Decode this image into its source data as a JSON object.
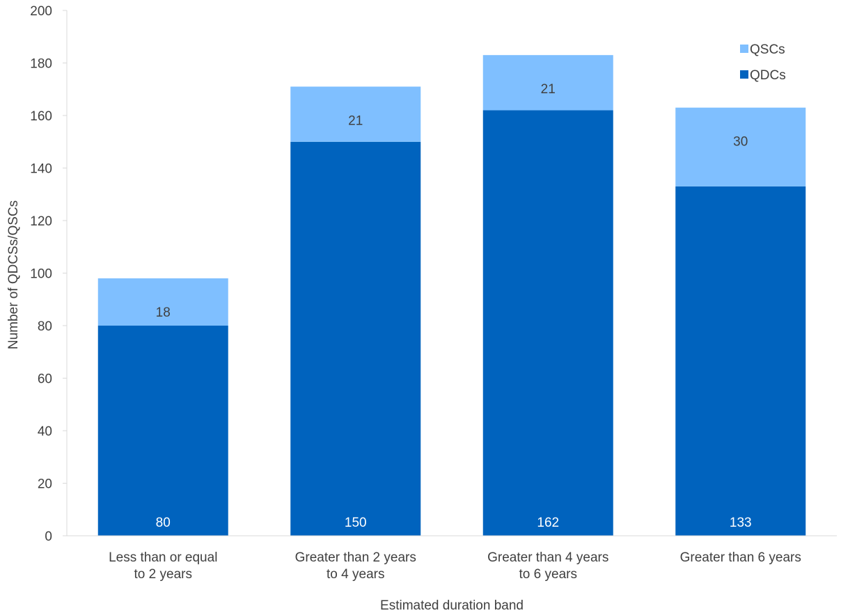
{
  "chart_data": {
    "type": "bar",
    "stacked": true,
    "title": "",
    "xlabel": "Estimated duration band",
    "ylabel": "Number of QDCSs/QSCs",
    "ylim": [
      0,
      200
    ],
    "yticks": [
      0,
      20,
      40,
      60,
      80,
      100,
      120,
      140,
      160,
      180,
      200
    ],
    "grid": false,
    "legend_position": "top-right",
    "categories": [
      [
        "Less than or equal",
        "to 2 years"
      ],
      [
        "Greater than 2 years",
        "to 4 years"
      ],
      [
        "Greater than 4 years",
        "to  6 years"
      ],
      [
        "Greater than 6 years"
      ]
    ],
    "series": [
      {
        "name": "QDCs",
        "values": [
          80,
          150,
          162,
          133
        ],
        "color": "#0063BE",
        "label_color": "#ffffff",
        "label_position": "bottom"
      },
      {
        "name": "QSCs",
        "values": [
          18,
          21,
          21,
          30
        ],
        "color": "#7FBFFF",
        "label_color": "#404040",
        "label_position": "below-top"
      }
    ],
    "legend_order": [
      "QSCs",
      "QDCs"
    ],
    "axis_color": "#D9D9D9"
  }
}
